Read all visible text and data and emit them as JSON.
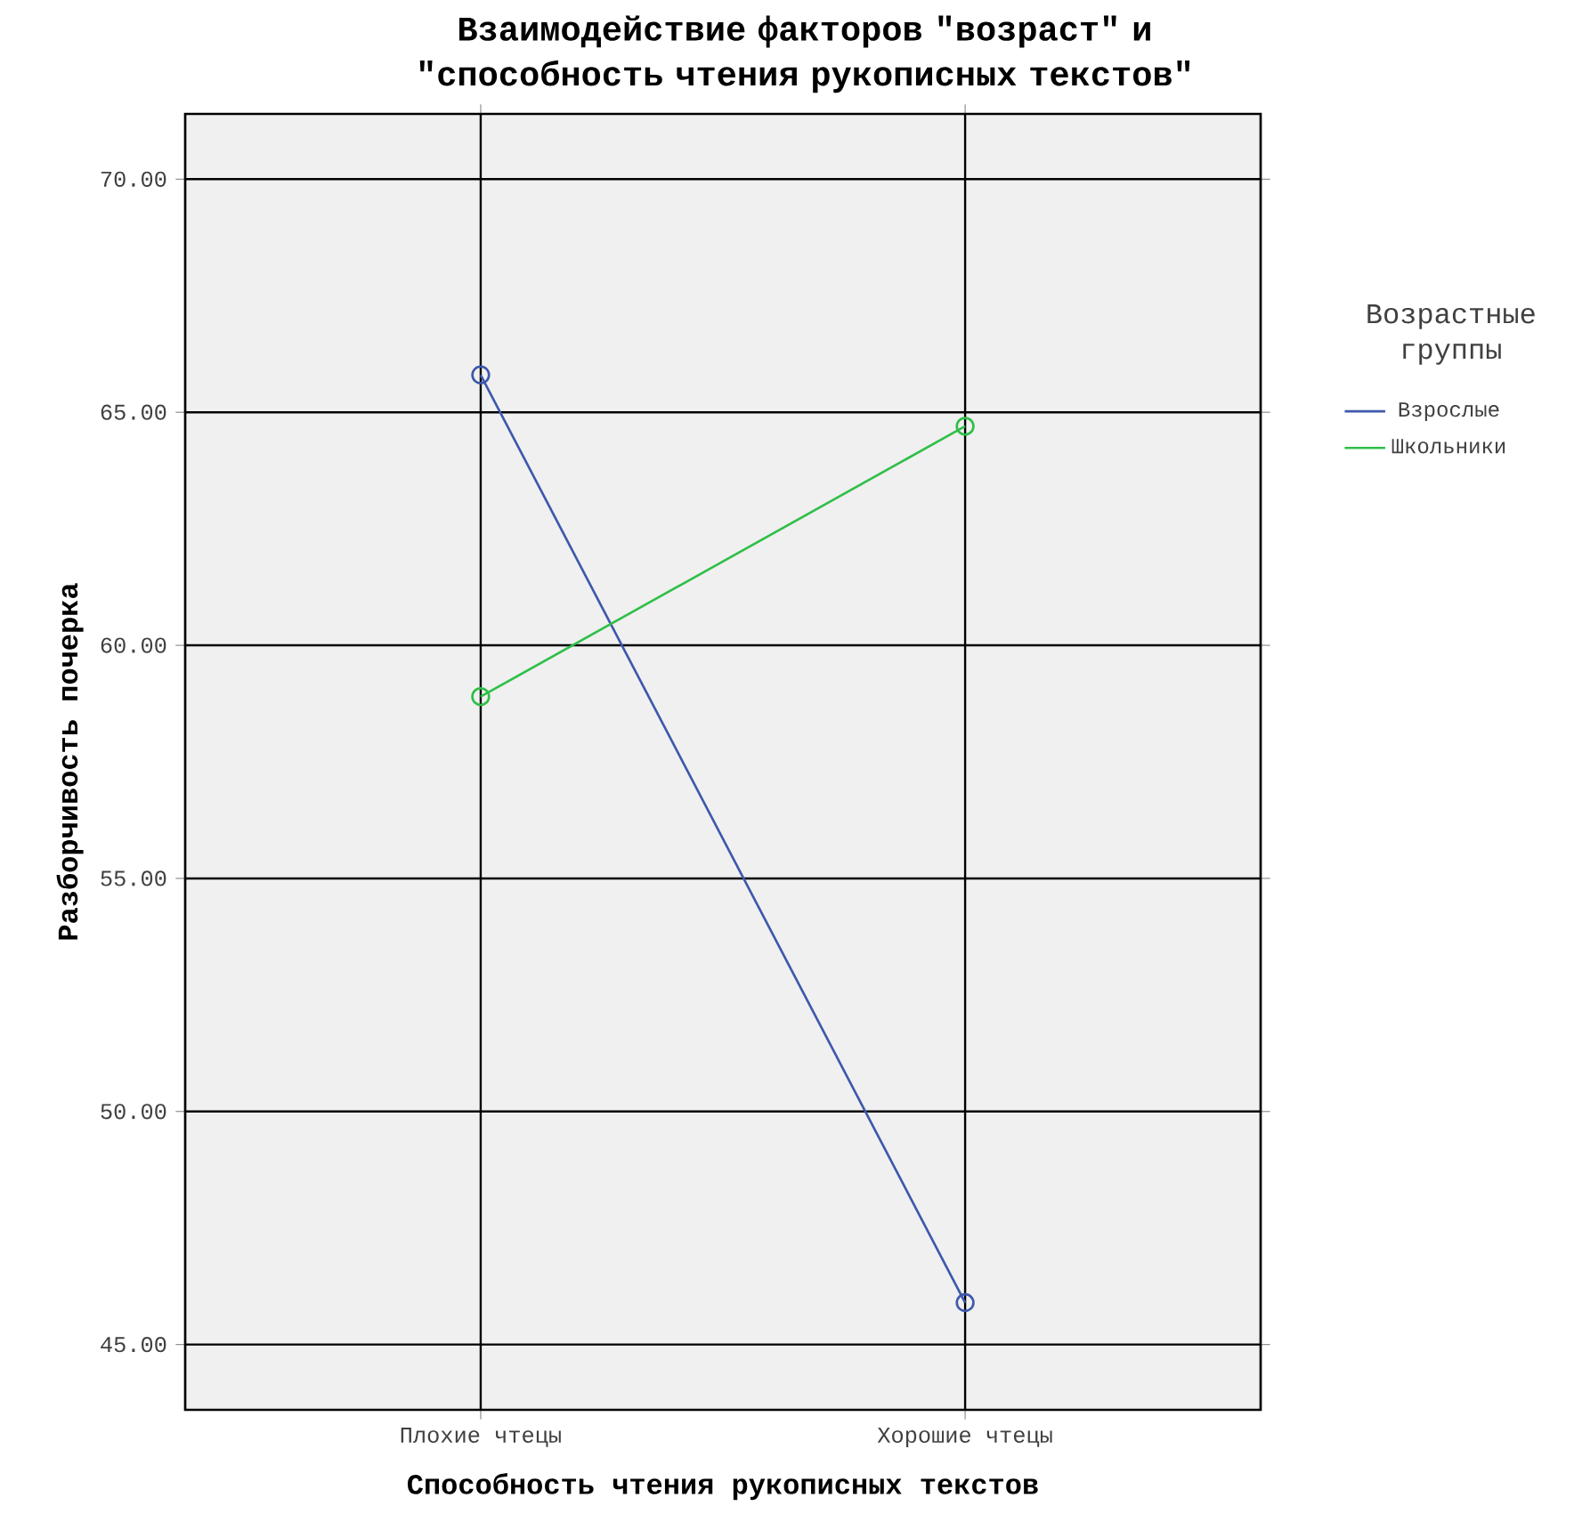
{
  "chart_data": {
    "type": "line",
    "title": "Взаимодействие факторов \"возраст\" и \"способность чтения рукописных текстов\"",
    "xlabel": "Способность чтения рукописных текстов",
    "ylabel": "Разборчивость почерка",
    "legend_title": "Возрастные группы",
    "categories": [
      "Плохие чтецы",
      "Хорошие чтецы"
    ],
    "series": [
      {
        "name": "Взрослые",
        "color": "#3e58ac",
        "values": [
          65.8,
          45.9
        ]
      },
      {
        "name": "Школьники",
        "color": "#2fbf48",
        "values": [
          58.9,
          64.7
        ]
      }
    ],
    "ylim": [
      43.6,
      71.4
    ],
    "yticks": [
      {
        "value": 45,
        "label": "45.00"
      },
      {
        "value": 50,
        "label": "50.00"
      },
      {
        "value": 55,
        "label": "55.00"
      },
      {
        "value": 60,
        "label": "60.00"
      },
      {
        "value": 65,
        "label": "65.00"
      },
      {
        "value": 70,
        "label": "70.00"
      }
    ],
    "grid": true,
    "legend": "right",
    "marker": "circle",
    "line_style": "solid"
  }
}
